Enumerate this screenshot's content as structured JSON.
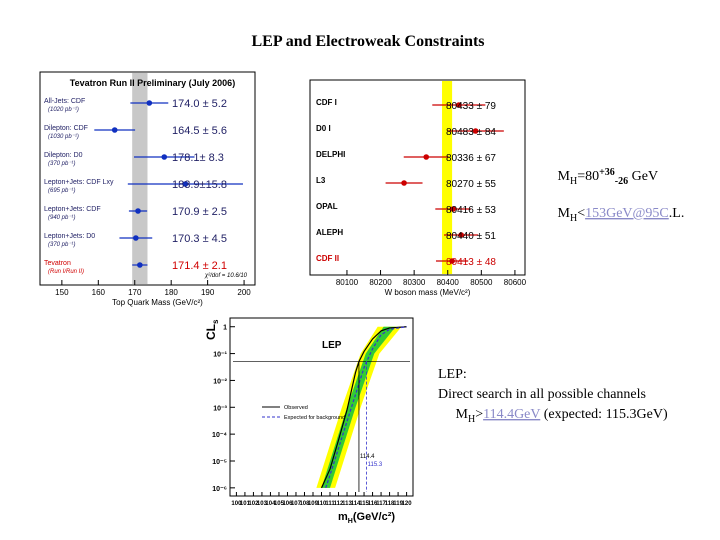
{
  "title": "LEP and Electroweak Constraints",
  "notes": {
    "w_fit": [
      "M",
      "H",
      "=80",
      "+36",
      "-26",
      " GeV"
    ],
    "w_limit": [
      "M",
      "H",
      "<",
      "153GeV@95C",
      ".L."
    ],
    "lep": {
      "heading": "LEP:",
      "line": "Direct search in all possible channels",
      "limit": [
        "M",
        "H",
        ">",
        "114.4GeV",
        " (expected: 115.3GeV)"
      ]
    }
  },
  "chart_data": [
    {
      "type": "errorbar",
      "title": "Tevatron Run II Preliminary (July 2006)",
      "x_label": "Top Quark Mass (GeV/c²)",
      "categories": [
        "All-Jets: CDF",
        "Dilepton: CDF",
        "Dilepton: D0",
        "Lepton+Jets: CDF Lxy",
        "Lepton+Jets: CDF",
        "Lepton+Jets: D0",
        "Tevatron"
      ],
      "sublabels": [
        "(1020 pb⁻¹)",
        "(1030 pb⁻¹)",
        "(370 pb⁻¹)",
        "(695 pb⁻¹)",
        "(940 pb⁻¹)",
        "(370 pb⁻¹)",
        "(Run I/Run II)"
      ],
      "values": [
        174.0,
        164.5,
        178.1,
        183.9,
        170.9,
        170.3,
        171.4
      ],
      "errors": [
        5.2,
        5.6,
        8.3,
        15.8,
        2.5,
        4.5,
        2.1
      ],
      "value_labels": [
        "174.0 ± 5.2",
        "164.5 ± 5.6",
        "178.1± 8.3",
        "183.9±15.8",
        "170.9 ± 2.5",
        "170.3 ± 4.5",
        "171.4 ± 2.1"
      ],
      "color": "#1030c0",
      "label_colors": [
        "#222266",
        "#222266",
        "#222266",
        "#222266",
        "#222266",
        "#222266",
        "#d00000"
      ],
      "band": [
        169.3,
        173.5
      ],
      "band_color": "#c8c8c8",
      "annotation": "χ²/dof = 10.6/10",
      "xlim": [
        144,
        203
      ],
      "xticks": [
        150,
        160,
        170,
        180,
        190,
        200
      ]
    },
    {
      "type": "errorbar",
      "x_label": "W boson mass (MeV/c²)",
      "categories": [
        "CDF I",
        "D0 I",
        "DELPHI",
        "L3",
        "OPAL",
        "ALEPH",
        "CDF II"
      ],
      "values": [
        80433,
        80483,
        80336,
        80270,
        80416,
        80440,
        80413
      ],
      "errors": [
        79,
        84,
        67,
        55,
        53,
        51,
        48
      ],
      "value_labels": [
        "80433 ± 79",
        "80483 ± 84",
        "80336 ± 67",
        "80270 ± 55",
        "80416 ± 53",
        "80440 ± 51",
        "80413 ± 48"
      ],
      "color": "#cc0000",
      "label_colors": [
        "#000000",
        "#000000",
        "#000000",
        "#000000",
        "#000000",
        "#000000",
        "#cc0000"
      ],
      "band": [
        80383,
        80413
      ],
      "band_color": "#ffff00",
      "xlim": [
        79990,
        80630
      ],
      "xticks": [
        80100,
        80200,
        80300,
        80400,
        80500,
        80600
      ]
    },
    {
      "type": "line",
      "title": "LEP",
      "y_label": "CL",
      "y_label_sub": "s",
      "x_label": [
        "m",
        "H",
        "(GeV/c²)"
      ],
      "log_y": true,
      "xlim": [
        99.6,
        120.4
      ],
      "xticks": [
        100,
        101,
        102,
        103,
        104,
        105,
        106,
        107,
        108,
        109,
        110,
        111,
        112,
        113,
        114,
        115,
        116,
        117,
        118,
        119,
        120
      ],
      "ylim": [
        7e-07,
        1.5
      ],
      "yticks": [
        1,
        {
          "value": 0.1,
          "label": "10⁻¹"
        },
        {
          "value": 0.01,
          "label": "10⁻²"
        },
        {
          "value": 0.001,
          "label": "10⁻³"
        },
        {
          "value": 0.0001,
          "label": "10⁻⁴"
        },
        {
          "value": 1e-05,
          "label": "10⁻⁵"
        },
        {
          "value": 1e-06,
          "label": "10⁻⁶"
        }
      ],
      "bands": [
        {
          "color": "#ffff00",
          "y": [
            1e-06,
            1e-05,
            0.0001,
            0.001,
            0.01,
            0.1,
            1
          ],
          "x_low": [
            109.4,
            110.4,
            111.4,
            112.4,
            113.5,
            114.6,
            116.6
          ],
          "x_high": [
            111.6,
            112.6,
            113.6,
            114.6,
            115.7,
            116.8,
            119.4
          ]
        },
        {
          "color": "#33cc33",
          "y": [
            1e-06,
            1e-05,
            0.0001,
            0.001,
            0.01,
            0.1,
            1
          ],
          "x_low": [
            110.0,
            111.0,
            112.0,
            113.0,
            114.1,
            115.2,
            117.3
          ],
          "x_high": [
            111.0,
            112.0,
            113.0,
            114.0,
            115.1,
            116.2,
            118.7
          ]
        }
      ],
      "series": [
        {
          "name": "Observed",
          "color": "#000000",
          "dash": false,
          "x": [
            110,
            111,
            112,
            113,
            114,
            114.4,
            115,
            116,
            117,
            118,
            120
          ],
          "values": [
            1e-06,
            5e-06,
            6e-05,
            0.0008,
            0.02,
            0.05,
            0.12,
            0.35,
            0.7,
            0.9,
            1
          ]
        },
        {
          "name": "Expected for background",
          "color": "#3333cc",
          "dash": true,
          "x": [
            110.5,
            111,
            112,
            113,
            114,
            115,
            115.3,
            116,
            117,
            118,
            120
          ],
          "values": [
            1e-06,
            3e-06,
            3e-05,
            0.0003,
            0.003,
            0.03,
            0.05,
            0.15,
            0.5,
            0.8,
            1
          ]
        }
      ],
      "hline": 0.05,
      "vlines": [
        114.4,
        115.3
      ]
    }
  ]
}
